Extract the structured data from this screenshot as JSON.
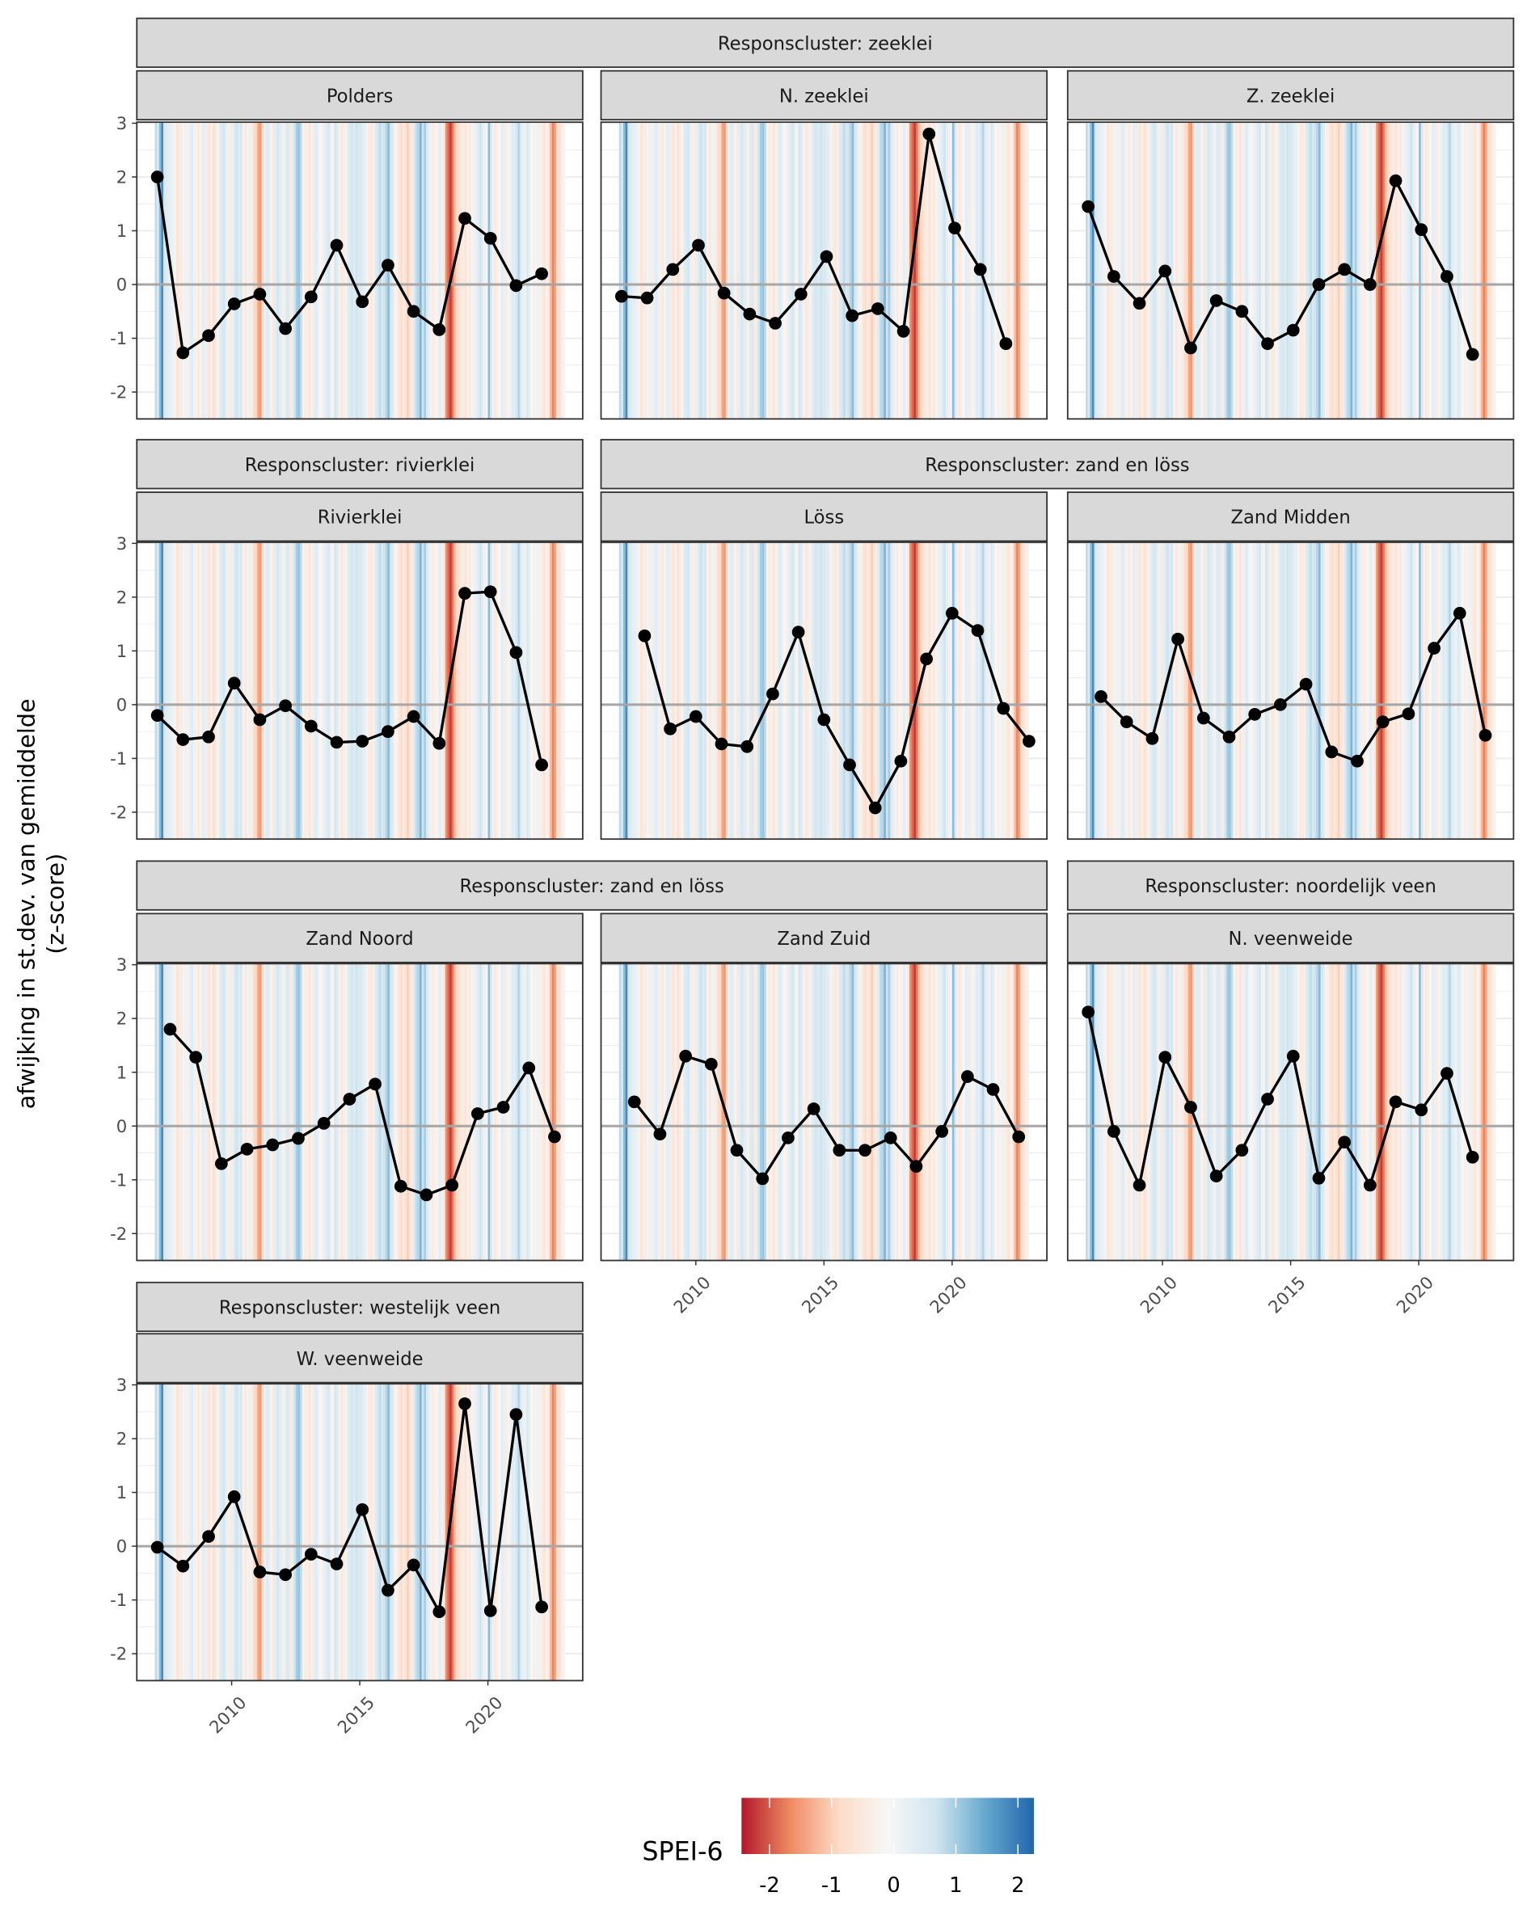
{
  "chart_data": {
    "type": "line",
    "ylabel": [
      "afwijking in st.dev. van gemiddelde",
      "(z-score)"
    ],
    "xlabel": "",
    "xlim": [
      2006.3,
      2023.7
    ],
    "ylim": [
      -2.5,
      3.0
    ],
    "x_ticks": [
      2010,
      2015,
      2020
    ],
    "y_ticks": [
      -2,
      -1,
      0,
      1,
      2,
      3
    ],
    "grid": true,
    "reference_line_y": 0,
    "cluster_strips": [
      "Responscluster: zeeklei",
      "Responscluster: rivierklei",
      "Responscluster: zand en löss",
      "Responscluster: zand en löss",
      "Responscluster: noordelijk veen",
      "Responscluster: westelijk veen"
    ],
    "panels": [
      {
        "name": "Polders",
        "x": [
          2007.1,
          2008.1,
          2009.1,
          2010.1,
          2011.1,
          2012.1,
          2013.1,
          2014.1,
          2015.1,
          2016.1,
          2017.1,
          2018.1,
          2019.1,
          2020.1,
          2021.1,
          2022.1
        ],
        "values": [
          2.0,
          -1.27,
          -0.95,
          -0.36,
          -0.18,
          -0.82,
          -0.23,
          0.73,
          -0.32,
          0.36,
          -0.5,
          -0.84,
          1.23,
          0.86,
          -0.02,
          0.2
        ]
      },
      {
        "name": "N. zeeklei",
        "x": [
          2007.1,
          2008.1,
          2009.1,
          2010.1,
          2011.1,
          2012.1,
          2013.1,
          2014.1,
          2015.1,
          2016.1,
          2017.1,
          2018.1,
          2019.1,
          2020.1,
          2021.1,
          2022.1
        ],
        "values": [
          -0.22,
          -0.25,
          0.28,
          0.73,
          -0.16,
          -0.55,
          -0.72,
          -0.18,
          0.52,
          -0.58,
          -0.45,
          -0.87,
          2.8,
          1.05,
          0.28,
          -1.1
        ]
      },
      {
        "name": "Z. zeeklei",
        "x": [
          2007.1,
          2008.1,
          2009.1,
          2010.1,
          2011.1,
          2012.1,
          2013.1,
          2014.1,
          2015.1,
          2016.1,
          2017.1,
          2018.1,
          2019.1,
          2020.1,
          2021.1,
          2022.1
        ],
        "values": [
          1.45,
          0.15,
          -0.35,
          0.25,
          -1.18,
          -0.3,
          -0.5,
          -1.1,
          -0.85,
          0.0,
          0.28,
          0.0,
          1.93,
          1.02,
          0.15,
          -1.3
        ]
      },
      {
        "name": "Rivierklei",
        "x": [
          2007.1,
          2008.1,
          2009.1,
          2010.1,
          2011.1,
          2012.1,
          2013.1,
          2014.1,
          2015.1,
          2016.1,
          2017.1,
          2018.1,
          2019.1,
          2020.1,
          2021.1,
          2022.1
        ],
        "values": [
          -0.2,
          -0.65,
          -0.6,
          0.4,
          -0.28,
          -0.02,
          -0.4,
          -0.7,
          -0.68,
          -0.5,
          -0.22,
          -0.72,
          2.07,
          2.1,
          0.97,
          -1.12
        ]
      },
      {
        "name": "Löss",
        "x": [
          2008.0,
          2009.0,
          2010.0,
          2011.0,
          2012.0,
          2013.0,
          2014.0,
          2015.0,
          2016.0,
          2017.0,
          2018.0,
          2019.0,
          2020.0,
          2021.0,
          2022.0,
          2023.0
        ],
        "values": [
          1.28,
          -0.45,
          -0.22,
          -0.73,
          -0.78,
          0.2,
          1.35,
          -0.28,
          -1.12,
          -1.92,
          -1.05,
          0.85,
          1.7,
          1.38,
          -0.07,
          -0.68
        ]
      },
      {
        "name": "Zand Midden",
        "x": [
          2007.6,
          2008.6,
          2009.6,
          2010.6,
          2011.6,
          2012.6,
          2013.6,
          2014.6,
          2015.6,
          2016.6,
          2017.6,
          2018.6,
          2019.6,
          2020.6,
          2021.6,
          2022.6
        ],
        "values": [
          0.15,
          -0.32,
          -0.63,
          1.22,
          -0.25,
          -0.6,
          -0.18,
          0.0,
          0.38,
          -0.88,
          -1.05,
          -0.32,
          -0.17,
          1.05,
          1.7,
          -0.57
        ]
      },
      {
        "name": "Zand Noord",
        "x": [
          2007.6,
          2008.6,
          2009.6,
          2010.6,
          2011.6,
          2012.6,
          2013.6,
          2014.6,
          2015.6,
          2016.6,
          2017.6,
          2018.6,
          2019.6,
          2020.6,
          2021.6,
          2022.6
        ],
        "values": [
          1.8,
          1.28,
          -0.7,
          -0.43,
          -0.35,
          -0.23,
          0.05,
          0.5,
          0.78,
          -1.12,
          -1.28,
          -1.1,
          0.23,
          0.35,
          1.08,
          -0.2
        ]
      },
      {
        "name": "Zand Zuid",
        "x": [
          2007.6,
          2008.6,
          2009.6,
          2010.6,
          2011.6,
          2012.6,
          2013.6,
          2014.6,
          2015.6,
          2016.6,
          2017.6,
          2018.6,
          2019.6,
          2020.6,
          2021.6,
          2022.6
        ],
        "values": [
          0.45,
          -0.15,
          1.3,
          1.15,
          -0.45,
          -0.98,
          -0.22,
          0.32,
          -0.45,
          -0.45,
          -0.22,
          -0.75,
          -0.1,
          0.92,
          0.68,
          -0.2
        ]
      },
      {
        "name": "N. veenweide",
        "x": [
          2007.1,
          2008.1,
          2009.1,
          2010.1,
          2011.1,
          2012.1,
          2013.1,
          2014.1,
          2015.1,
          2016.1,
          2017.1,
          2018.1,
          2019.1,
          2020.1,
          2021.1,
          2022.1
        ],
        "values": [
          2.12,
          -0.1,
          -1.1,
          1.28,
          0.35,
          -0.93,
          -0.45,
          0.5,
          1.3,
          -0.97,
          -0.3,
          -1.1,
          0.45,
          0.3,
          0.98,
          -0.58
        ]
      },
      {
        "name": "W. veenweide",
        "x": [
          2007.1,
          2008.1,
          2009.1,
          2010.1,
          2011.1,
          2012.1,
          2013.1,
          2014.1,
          2015.1,
          2016.1,
          2017.1,
          2018.1,
          2019.1,
          2020.1,
          2021.1,
          2022.1
        ],
        "values": [
          -0.02,
          -0.37,
          0.18,
          0.92,
          -0.48,
          -0.53,
          -0.15,
          -0.33,
          0.68,
          -0.82,
          -0.35,
          -1.22,
          2.65,
          -1.2,
          2.45,
          -1.13
        ]
      }
    ],
    "background_spei6": {
      "start": "2007-01",
      "frequency": "monthly",
      "values": [
        0.8,
        0.5,
        1.2,
        1.8,
        0.6,
        0.4,
        0.3,
        0.2,
        0.1,
        -0.2,
        -0.6,
        -0.4,
        -0.4,
        -0.2,
        0.1,
        -0.3,
        0.2,
        0.4,
        0.1,
        -0.3,
        -0.5,
        -0.2,
        0.3,
        0.2,
        -0.4,
        -0.6,
        -0.3,
        -0.7,
        -0.5,
        -0.2,
        0.3,
        0.5,
        0.6,
        0.2,
        -0.3,
        -0.4,
        0.2,
        0.5,
        0.7,
        0.4,
        0.6,
        -0.2,
        -0.5,
        -0.3,
        0.1,
        -0.4,
        -0.8,
        -0.9,
        -1.4,
        -1.5,
        -0.9,
        0.2,
        0.4,
        0.3,
        -0.2,
        -0.5,
        0.3,
        0.6,
        0.4,
        0.2,
        -0.3,
        0.4,
        0.5,
        -0.5,
        0.2,
        0.7,
        1.0,
        1.1,
        0.8,
        -0.2,
        -0.4,
        -0.3,
        -0.6,
        -0.3,
        0.2,
        0.4,
        0.1,
        -0.1,
        -0.3,
        0.2,
        0.4,
        0.6,
        0.1,
        -0.2,
        0.6,
        0.4,
        -0.3,
        -0.5,
        -0.4,
        -0.2,
        0.3,
        0.5,
        0.6,
        0.4,
        0.7,
        0.5,
        0.5,
        0.3,
        0.2,
        -0.2,
        -0.4,
        -0.5,
        -0.3,
        0.4,
        0.6,
        0.8,
        0.5,
        0.7,
        0.9,
        1.2,
        0.6,
        0.4,
        -0.2,
        -0.3,
        -0.6,
        -0.8,
        -0.5,
        -0.7,
        -1.0,
        -0.6,
        -0.4,
        0.4,
        0.8,
        0.9,
        1.3,
        0.7,
        1.0,
        0.5,
        0.2,
        -0.3,
        -0.4,
        -0.2,
        -0.2,
        0.3,
        0.1,
        -0.5,
        -1.6,
        -1.9,
        -2.2,
        -1.8,
        -1.2,
        -0.9,
        -0.7,
        -0.5,
        -0.4,
        -0.6,
        -0.3,
        -0.5,
        -0.2,
        0.1,
        0.2,
        0.4,
        0.7,
        0.3,
        0.1,
        -0.2,
        1.2,
        0.5,
        -0.3,
        -0.5,
        -0.3,
        -0.1,
        0.3,
        0.2,
        -0.4,
        -0.2,
        0.1,
        0.4,
        0.3,
        0.6,
        0.9,
        0.4,
        0.2,
        0.1,
        0.5,
        0.2,
        -0.1,
        -0.3,
        -0.2,
        0.1,
        -0.3,
        -0.4,
        -0.6,
        -0.2,
        -0.5,
        -1.2,
        -1.7,
        -1.4,
        -0.8,
        -0.7,
        -0.4,
        -0.2
      ]
    },
    "legend": {
      "title": "SPEI-6",
      "ticks": [
        -2,
        -1,
        0,
        1,
        2
      ],
      "range": [
        -2.45,
        2.25
      ],
      "placement": "bottom",
      "palette": [
        "#b2182b",
        "#ef8a62",
        "#fddbc7",
        "#f7f7f7",
        "#d1e5f0",
        "#67a9cf",
        "#2166ac"
      ]
    },
    "colors": {
      "line": "#000000",
      "zero_line": "#a6a6a6",
      "strip_fill": "#d9d9d9"
    }
  }
}
